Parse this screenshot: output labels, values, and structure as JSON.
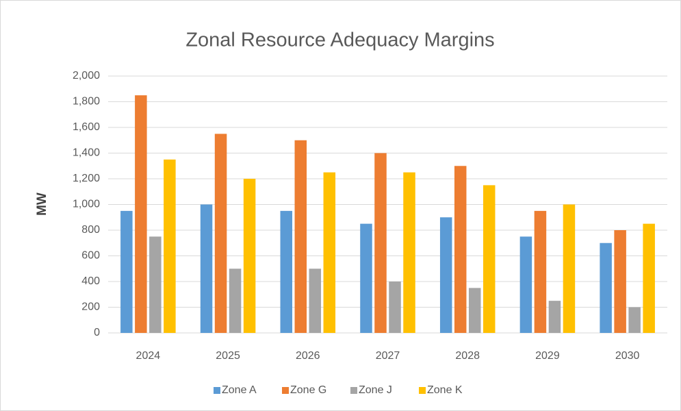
{
  "chart_data": {
    "type": "bar",
    "title": "Zonal Resource Adequacy Margins",
    "y_axis_label": "MW",
    "categories": [
      "2024",
      "2025",
      "2026",
      "2027",
      "2028",
      "2029",
      "2030"
    ],
    "series": [
      {
        "name": "Zone A",
        "color": "#5b9bd5",
        "values": [
          950,
          1000,
          950,
          850,
          900,
          750,
          700
        ]
      },
      {
        "name": "Zone G",
        "color": "#ed7d31",
        "values": [
          1850,
          1550,
          1500,
          1400,
          1300,
          950,
          800
        ]
      },
      {
        "name": "Zone J",
        "color": "#a5a5a5",
        "values": [
          750,
          500,
          500,
          400,
          350,
          250,
          200
        ]
      },
      {
        "name": "Zone K",
        "color": "#ffc000",
        "values": [
          1350,
          1200,
          1250,
          1250,
          1150,
          1000,
          850
        ]
      }
    ],
    "ylim": [
      0,
      2000
    ],
    "yticks": [
      0,
      200,
      400,
      600,
      800,
      {
        "value": 1000,
        "label": "1,000"
      },
      {
        "value": 1200,
        "label": "1,200"
      },
      {
        "value": 1400,
        "label": "1,400"
      },
      {
        "value": 1600,
        "label": "1,600"
      },
      {
        "value": 1800,
        "label": "1,800"
      },
      {
        "value": 2000,
        "label": "2,000"
      }
    ],
    "grid": true,
    "legend": "bottom"
  }
}
